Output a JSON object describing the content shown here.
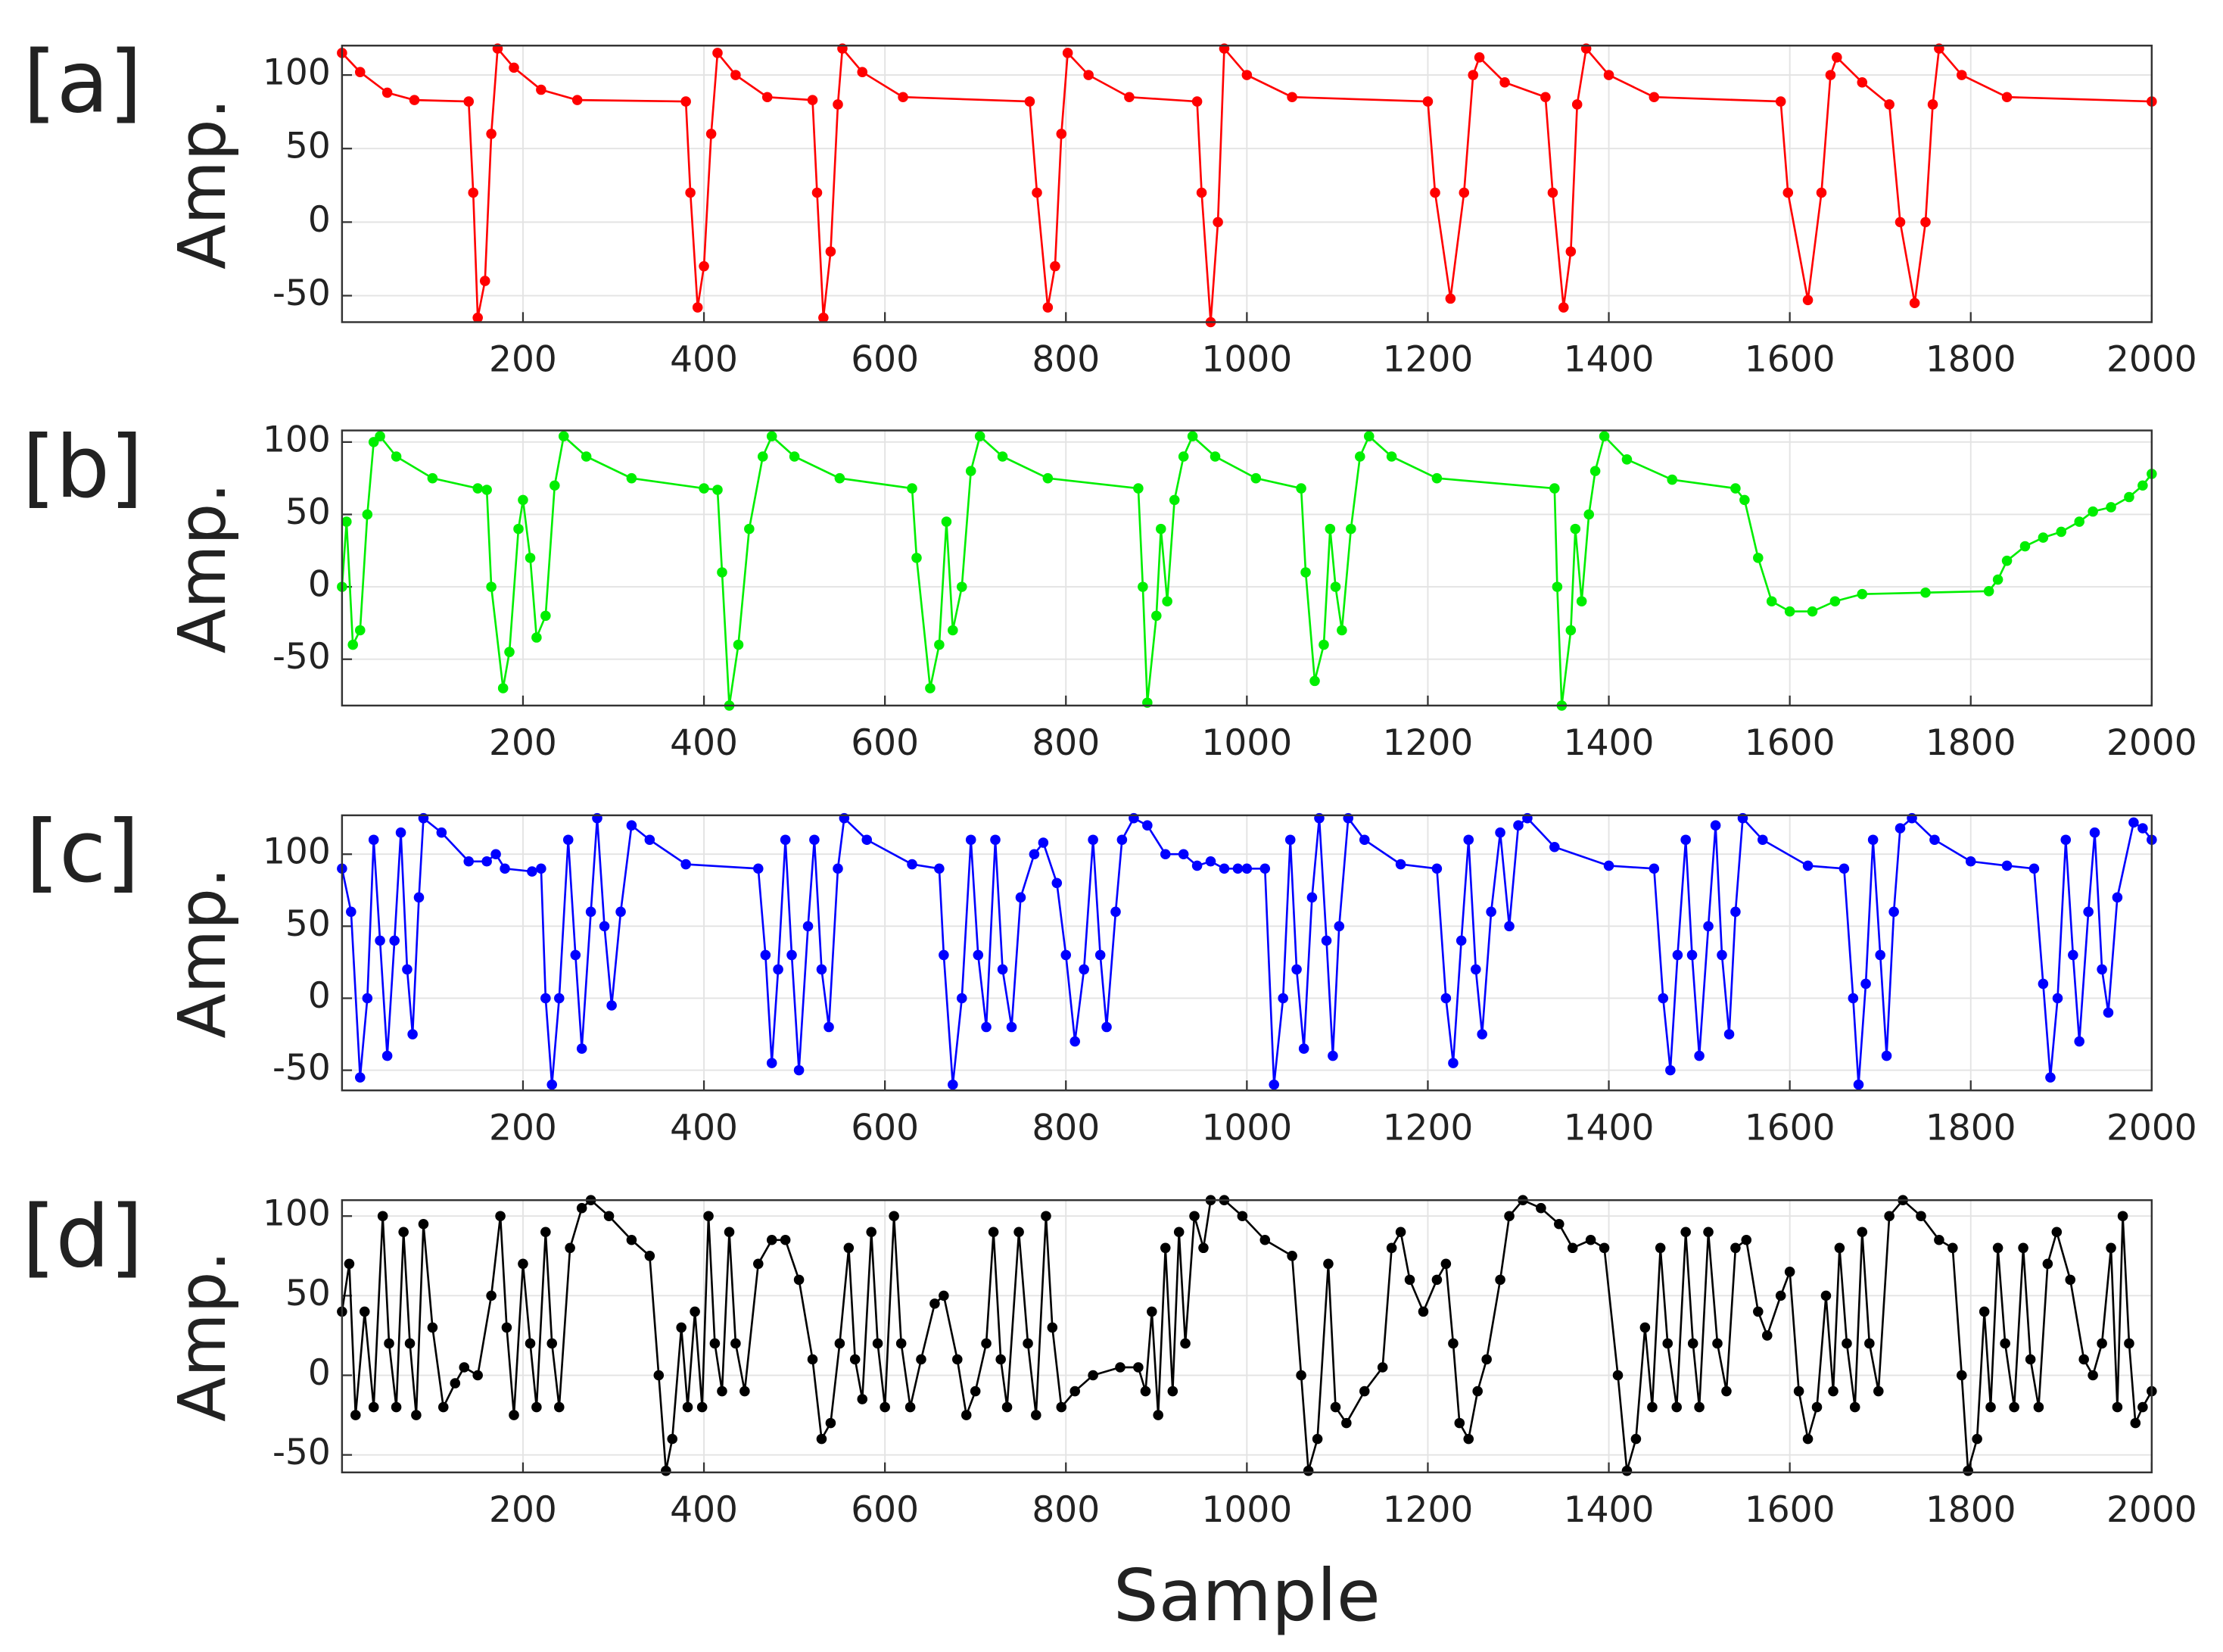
{
  "chart_data": [
    {
      "type": "line",
      "label": "[a]",
      "ylabel": "Amp.",
      "color": "#ff0000",
      "markers": true,
      "grid": true,
      "xlim": [
        0,
        2000
      ],
      "ylim": [
        -68,
        120
      ],
      "xticks": [
        200,
        400,
        600,
        800,
        1000,
        1200,
        1400,
        1600,
        1800,
        2000
      ],
      "yticks": [
        -50,
        0,
        50,
        100
      ],
      "x": [
        0,
        20,
        50,
        80,
        140,
        145,
        150,
        158,
        165,
        172,
        190,
        220,
        260,
        380,
        385,
        393,
        400,
        408,
        415,
        435,
        470,
        520,
        525,
        532,
        540,
        548,
        553,
        575,
        620,
        760,
        768,
        780,
        788,
        795,
        802,
        825,
        870,
        945,
        950,
        960,
        968,
        975,
        1000,
        1050,
        1200,
        1208,
        1225,
        1240,
        1250,
        1257,
        1285,
        1330,
        1338,
        1350,
        1358,
        1365,
        1375,
        1400,
        1450,
        1590,
        1598,
        1620,
        1635,
        1645,
        1652,
        1680,
        1710,
        1722,
        1738,
        1750,
        1758,
        1765,
        1790,
        1840,
        2000
      ],
      "values": [
        115,
        102,
        88,
        83,
        82,
        20,
        -65,
        -40,
        60,
        118,
        105,
        90,
        83,
        82,
        20,
        -58,
        -30,
        60,
        115,
        100,
        85,
        83,
        20,
        -65,
        -20,
        80,
        118,
        102,
        85,
        82,
        20,
        -58,
        -30,
        60,
        115,
        100,
        85,
        82,
        20,
        -68,
        0,
        118,
        100,
        85,
        82,
        20,
        -52,
        20,
        100,
        112,
        95,
        85,
        20,
        -58,
        -20,
        80,
        118,
        100,
        85,
        82,
        20,
        -53,
        20,
        100,
        112,
        95,
        80,
        0,
        -55,
        0,
        80,
        118,
        100,
        85,
        82
      ]
    },
    {
      "type": "line",
      "label": "[b]",
      "ylabel": "Amp.",
      "color": "#00ee00",
      "markers": true,
      "grid": true,
      "xlim": [
        0,
        2000
      ],
      "ylim": [
        -82,
        108
      ],
      "xticks": [
        200,
        400,
        600,
        800,
        1000,
        1200,
        1400,
        1600,
        1800,
        2000
      ],
      "yticks": [
        -50,
        0,
        50,
        100
      ],
      "x": [
        0,
        5,
        12,
        20,
        28,
        35,
        42,
        60,
        100,
        150,
        160,
        165,
        178,
        185,
        195,
        200,
        208,
        215,
        225,
        235,
        245,
        270,
        320,
        400,
        415,
        420,
        428,
        438,
        450,
        465,
        475,
        500,
        550,
        630,
        635,
        650,
        660,
        668,
        675,
        685,
        695,
        705,
        730,
        780,
        880,
        885,
        890,
        900,
        905,
        912,
        920,
        930,
        940,
        965,
        1010,
        1060,
        1065,
        1075,
        1085,
        1092,
        1098,
        1105,
        1115,
        1125,
        1135,
        1160,
        1210,
        1340,
        1343,
        1348,
        1358,
        1363,
        1370,
        1378,
        1385,
        1395,
        1420,
        1470,
        1540,
        1550,
        1565,
        1580,
        1600,
        1625,
        1650,
        1680,
        1750,
        1820,
        1830,
        1840,
        1860,
        1880,
        1900,
        1920,
        1935,
        1955,
        1975,
        1990,
        2000
      ],
      "values": [
        0,
        45,
        -40,
        -30,
        50,
        100,
        104,
        90,
        75,
        68,
        67,
        0,
        -70,
        -45,
        40,
        60,
        20,
        -35,
        -20,
        70,
        104,
        90,
        75,
        68,
        67,
        10,
        -82,
        -40,
        40,
        90,
        104,
        90,
        75,
        68,
        20,
        -70,
        -40,
        45,
        -30,
        0,
        80,
        104,
        90,
        75,
        68,
        0,
        -80,
        -20,
        40,
        -10,
        60,
        90,
        104,
        90,
        75,
        68,
        10,
        -65,
        -40,
        40,
        0,
        -30,
        40,
        90,
        104,
        90,
        75,
        68,
        0,
        -82,
        -30,
        40,
        -10,
        50,
        80,
        104,
        88,
        74,
        68,
        60,
        20,
        -10,
        -17,
        -17,
        -10,
        -5,
        -4,
        -3,
        5,
        18,
        28,
        34,
        38,
        45,
        52,
        55,
        62,
        70,
        78
      ]
    },
    {
      "type": "line",
      "label": "[c]",
      "ylabel": "Amp.",
      "color": "#0000ff",
      "markers": true,
      "grid": true,
      "xlim": [
        0,
        2000
      ],
      "ylim": [
        -64,
        127
      ],
      "xticks": [
        200,
        400,
        600,
        800,
        1000,
        1200,
        1400,
        1600,
        1800,
        2000
      ],
      "yticks": [
        -50,
        0,
        50,
        100
      ],
      "x": [
        0,
        10,
        20,
        28,
        35,
        42,
        50,
        58,
        65,
        72,
        78,
        85,
        90,
        110,
        140,
        160,
        170,
        180,
        210,
        220,
        225,
        232,
        240,
        250,
        258,
        265,
        275,
        282,
        290,
        298,
        308,
        320,
        340,
        380,
        460,
        468,
        475,
        482,
        490,
        497,
        505,
        515,
        522,
        530,
        538,
        548,
        555,
        580,
        630,
        660,
        665,
        675,
        685,
        695,
        703,
        712,
        722,
        730,
        740,
        750,
        765,
        775,
        790,
        800,
        810,
        820,
        830,
        838,
        845,
        855,
        862,
        875,
        890,
        910,
        930,
        945,
        960,
        975,
        990,
        1000,
        1020,
        1030,
        1040,
        1048,
        1055,
        1063,
        1072,
        1080,
        1088,
        1095,
        1102,
        1112,
        1130,
        1170,
        1210,
        1220,
        1228,
        1237,
        1245,
        1253,
        1260,
        1270,
        1280,
        1290,
        1300,
        1310,
        1340,
        1400,
        1450,
        1460,
        1468,
        1476,
        1485,
        1492,
        1500,
        1510,
        1518,
        1525,
        1533,
        1540,
        1548,
        1570,
        1620,
        1660,
        1670,
        1676,
        1684,
        1692,
        1700,
        1707,
        1715,
        1722,
        1735,
        1760,
        1800,
        1840,
        1870,
        1880,
        1888,
        1896,
        1905,
        1913,
        1920,
        1930,
        1937,
        1945,
        1952,
        1962,
        1980,
        1990,
        2000
      ],
      "values": [
        90,
        60,
        -55,
        0,
        110,
        40,
        -40,
        40,
        115,
        20,
        -25,
        70,
        125,
        115,
        95,
        95,
        100,
        90,
        88,
        90,
        0,
        -60,
        0,
        110,
        30,
        -35,
        60,
        125,
        50,
        -5,
        60,
        120,
        110,
        93,
        90,
        30,
        -45,
        20,
        110,
        30,
        -50,
        50,
        110,
        20,
        -20,
        90,
        125,
        110,
        93,
        90,
        30,
        -60,
        0,
        110,
        30,
        -20,
        110,
        20,
        -20,
        70,
        100,
        108,
        80,
        30,
        -30,
        20,
        110,
        30,
        -20,
        60,
        110,
        125,
        120,
        100,
        100,
        92,
        95,
        90,
        90,
        90,
        90,
        -60,
        0,
        110,
        20,
        -35,
        70,
        125,
        40,
        -40,
        50,
        125,
        110,
        93,
        90,
        0,
        -45,
        40,
        110,
        20,
        -25,
        60,
        115,
        50,
        120,
        125,
        105,
        92,
        90,
        0,
        -50,
        30,
        110,
        30,
        -40,
        50,
        120,
        30,
        -25,
        60,
        125,
        110,
        92,
        90,
        0,
        -60,
        10,
        110,
        30,
        -40,
        60,
        118,
        125,
        110,
        95,
        92,
        90,
        10,
        -55,
        0,
        110,
        30,
        -30,
        60,
        115,
        20,
        -10,
        70,
        122,
        118,
        110
      ]
    },
    {
      "type": "line",
      "label": "[d]",
      "ylabel": "Amp.",
      "xlabel": "Sample",
      "color": "#000000",
      "markers": true,
      "grid": true,
      "xlim": [
        0,
        2000
      ],
      "ylim": [
        -61,
        110
      ],
      "xticks": [
        200,
        400,
        600,
        800,
        1000,
        1200,
        1400,
        1600,
        1800,
        2000
      ],
      "yticks": [
        -50,
        0,
        50,
        100
      ],
      "x": [
        0,
        8,
        15,
        25,
        35,
        45,
        52,
        60,
        68,
        75,
        82,
        90,
        100,
        112,
        125,
        135,
        150,
        165,
        175,
        182,
        190,
        200,
        208,
        215,
        225,
        232,
        240,
        252,
        265,
        275,
        295,
        320,
        340,
        350,
        358,
        365,
        375,
        382,
        390,
        398,
        405,
        412,
        420,
        428,
        435,
        445,
        460,
        475,
        490,
        505,
        520,
        530,
        540,
        550,
        560,
        567,
        575,
        585,
        592,
        600,
        610,
        618,
        628,
        640,
        655,
        665,
        680,
        690,
        700,
        712,
        720,
        728,
        735,
        748,
        758,
        767,
        778,
        785,
        795,
        810,
        830,
        860,
        880,
        888,
        895,
        902,
        910,
        918,
        925,
        932,
        942,
        952,
        960,
        975,
        995,
        1020,
        1050,
        1060,
        1068,
        1078,
        1090,
        1098,
        1110,
        1130,
        1150,
        1160,
        1170,
        1180,
        1195,
        1210,
        1220,
        1228,
        1235,
        1245,
        1255,
        1265,
        1280,
        1290,
        1305,
        1325,
        1345,
        1360,
        1380,
        1395,
        1410,
        1420,
        1430,
        1440,
        1448,
        1457,
        1465,
        1475,
        1485,
        1493,
        1500,
        1510,
        1520,
        1530,
        1540,
        1552,
        1565,
        1575,
        1590,
        1600,
        1610,
        1620,
        1630,
        1640,
        1648,
        1655,
        1663,
        1672,
        1680,
        1688,
        1698,
        1710,
        1725,
        1745,
        1765,
        1780,
        1790,
        1797,
        1807,
        1815,
        1822,
        1830,
        1838,
        1848,
        1858,
        1866,
        1875,
        1885,
        1895,
        1910,
        1925,
        1935,
        1945,
        1955,
        1962,
        1968,
        1975,
        1982,
        1990,
        2000
      ],
      "values": [
        40,
        70,
        -25,
        40,
        -20,
        100,
        20,
        -20,
        90,
        20,
        -25,
        95,
        30,
        -20,
        -5,
        5,
        0,
        50,
        100,
        30,
        -25,
        70,
        20,
        -20,
        90,
        20,
        -20,
        80,
        105,
        110,
        100,
        85,
        75,
        0,
        -60,
        -40,
        30,
        -20,
        40,
        -20,
        100,
        20,
        -10,
        90,
        20,
        -10,
        70,
        85,
        85,
        60,
        10,
        -40,
        -30,
        20,
        80,
        10,
        -15,
        90,
        20,
        -20,
        100,
        20,
        -20,
        10,
        45,
        50,
        10,
        -25,
        -10,
        20,
        90,
        10,
        -20,
        90,
        20,
        -25,
        100,
        30,
        -20,
        -10,
        0,
        5,
        5,
        -10,
        40,
        -25,
        80,
        -10,
        90,
        20,
        100,
        80,
        110,
        110,
        100,
        85,
        75,
        0,
        -60,
        -40,
        70,
        -20,
        -30,
        -10,
        5,
        80,
        90,
        60,
        40,
        60,
        70,
        20,
        -30,
        -40,
        -10,
        10,
        60,
        100,
        110,
        105,
        95,
        80,
        85,
        80,
        0,
        -60,
        -40,
        30,
        -20,
        80,
        20,
        -20,
        90,
        20,
        -20,
        90,
        20,
        -10,
        80,
        85,
        40,
        25,
        50,
        65,
        -10,
        -40,
        -20,
        50,
        -10,
        80,
        20,
        -20,
        90,
        20,
        -10,
        100,
        110,
        100,
        85,
        80,
        0,
        -60,
        -40,
        40,
        -20,
        80,
        20,
        -20,
        80,
        10,
        -20,
        70,
        90,
        60,
        10,
        0,
        20,
        80,
        -20,
        100,
        20,
        -30,
        -20,
        -10
      ]
    }
  ]
}
